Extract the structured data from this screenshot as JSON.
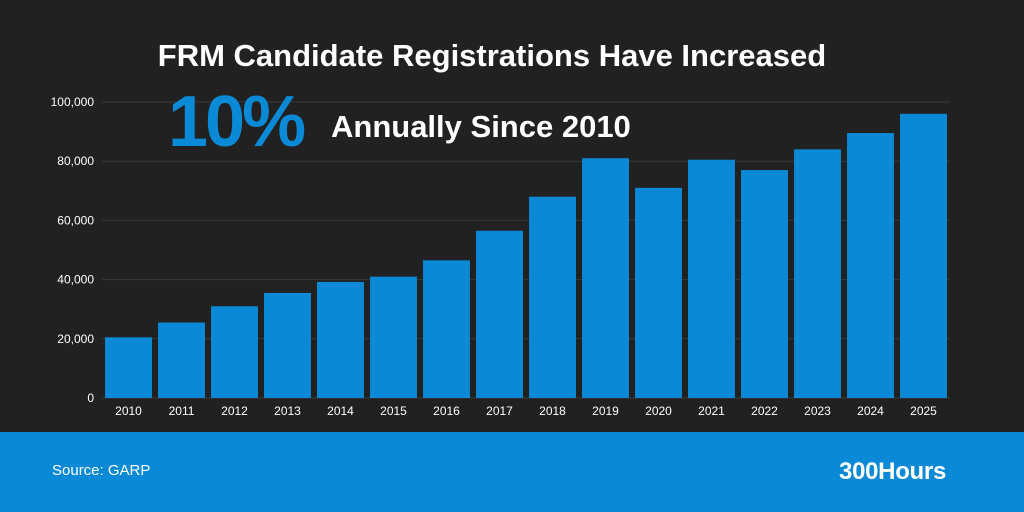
{
  "headline": {
    "title": "FRM Candidate Registrations Have Increased",
    "big_stat": "10%",
    "subtitle": "Annually Since 2010"
  },
  "footer": {
    "source": "Source: GARP",
    "brand": "300Hours"
  },
  "colors": {
    "background": "#212121",
    "bar": "#0a8ad6",
    "accent": "#0a8ad6",
    "footer": "#0a8ad6",
    "text": "#ffffff",
    "gridline": "#3a3a3a"
  },
  "chart_data": {
    "type": "bar",
    "title": "FRM Candidate Registrations Have Increased",
    "xlabel": "",
    "ylabel": "",
    "categories": [
      "2010",
      "2011",
      "2012",
      "2013",
      "2014",
      "2015",
      "2016",
      "2017",
      "2018",
      "2019",
      "2020",
      "2021",
      "2022",
      "2023",
      "2024",
      "2025"
    ],
    "values": [
      20500,
      25500,
      31000,
      35500,
      39200,
      41000,
      46500,
      56500,
      68000,
      81000,
      71000,
      80500,
      77000,
      84000,
      89500,
      96000
    ],
    "ylim": [
      0,
      100000
    ],
    "yticks": [
      0,
      20000,
      40000,
      60000,
      80000,
      100000
    ],
    "ytick_labels": [
      "0",
      "20,000",
      "40,000",
      "60,000",
      "80,000",
      "100,000"
    ],
    "grid": true,
    "legend": "none"
  }
}
